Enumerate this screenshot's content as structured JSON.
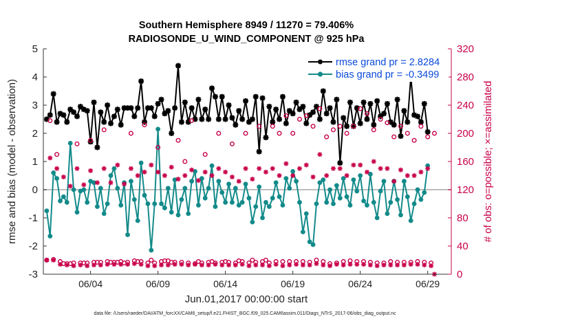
{
  "chart_data": {
    "type": "line",
    "title": "Southern Hemisphere 8949 / 11270 = 79.406%",
    "subtitle": "RADIOSONDE_U_WIND_COMPONENT @ 925 hPa",
    "xlabel": "Jun.01,2017 00:00:00 start",
    "ylabel": "rmse and bias (model - observation)",
    "ylabel_right": "# of obs: o=possible; ×=assimilated",
    "footnote": "data file: /Users/raeder/DAI/ATM_forcXX/CAM6_setup/f.e21.FHIST_BGC.f09_025.CAM6assim.011/Diags_NTrS_2017-06/obs_diag_output.nc",
    "xlim": [
      0.5,
      30.75
    ],
    "ylim": [
      -3,
      5
    ],
    "ylim_right": [
      0,
      320
    ],
    "x_ticks": [
      4,
      9,
      14,
      19,
      24,
      29
    ],
    "x_tick_labels": [
      "06/04",
      "06/09",
      "06/14",
      "06/19",
      "06/24",
      "06/29"
    ],
    "y_ticks": [
      -3,
      -2,
      -1,
      0,
      1,
      2,
      3,
      4,
      5
    ],
    "y_ticks_right": [
      0,
      40,
      80,
      120,
      160,
      200,
      240,
      280,
      320
    ],
    "zero_line": 0,
    "grid": false,
    "legend_position": "top-right",
    "x_start": 0.75,
    "x_step": 0.25,
    "series": [
      {
        "name": "rmse grand pr = 2.8284",
        "axis": "left",
        "color": "#000000",
        "marker": "star",
        "values": [
          2.5,
          2.65,
          3.4,
          2.4,
          2.7,
          2.65,
          2.4,
          2.85,
          2.75,
          2.6,
          2.95,
          2.85,
          2.8,
          1.7,
          3.1,
          1.5,
          2.75,
          2.4,
          3.0,
          2.35,
          2.6,
          2.85,
          2.3,
          2.9,
          2.9,
          2.9,
          2.6,
          2.9,
          3.85,
          2.4,
          2.9,
          2.9,
          2.6,
          3.05,
          3.2,
          2.7,
          2.8,
          2.0,
          2.9,
          4.4,
          2.4,
          3.1,
          2.4,
          2.9,
          2.5,
          3.2,
          2.5,
          2.85,
          2.5,
          3.6,
          3.3,
          2.5,
          3.3,
          2.5,
          3.0,
          2.55,
          2.3,
          2.8,
          2.5,
          3.15,
          2.4,
          2.5,
          3.3,
          1.35,
          3.25,
          1.85,
          2.95,
          2.4,
          2.85,
          2.5,
          3.3,
          2.35,
          2.8,
          2.7,
          3.1,
          2.85,
          2.95,
          2.35,
          2.65,
          2.75,
          2.95,
          2.5,
          3.5,
          2.7,
          2.9,
          2.4,
          3.2,
          0.95,
          2.55,
          2.25,
          3.1,
          2.25,
          2.9,
          2.35,
          3.1,
          2.5,
          3.05,
          2.3,
          3.15,
          2.6,
          2.7,
          3.05,
          2.4,
          2.3,
          3.2,
          1.9,
          2.8,
          2.4,
          4.0,
          2.65,
          2.6,
          2.4,
          3.05,
          2.05
        ]
      },
      {
        "name": "bias grand pr = -0.3499",
        "axis": "left",
        "color": "#138a8a",
        "marker": "dot",
        "values": [
          -0.75,
          -1.65,
          0.6,
          0.4,
          -0.4,
          -0.25,
          -0.45,
          1.65,
          0.0,
          -0.8,
          -0.05,
          0.0,
          -0.45,
          0.3,
          0.25,
          -0.6,
          0.05,
          -0.85,
          -0.5,
          0.5,
          0.75,
          0.05,
          -0.55,
          0.25,
          -1.6,
          0.3,
          -0.35,
          -1.1,
          0.95,
          -0.2,
          -0.5,
          -2.15,
          -0.5,
          2.15,
          -0.5,
          -0.65,
          0.05,
          -0.8,
          0.35,
          -0.9,
          -0.35,
          0.05,
          -0.85,
          0.3,
          0.65,
          -0.55,
          0.4,
          -0.3,
          0.05,
          0.85,
          -0.6,
          0.3,
          -0.1,
          -0.45,
          0.2,
          -0.45,
          0.05,
          -0.55,
          -0.45,
          0.2,
          -0.3,
          -1.15,
          -0.6,
          0.1,
          -1.0,
          -0.45,
          -0.6,
          -0.3,
          0.25,
          -0.25,
          -0.55,
          0.4,
          0.05,
          0.65,
          0.3,
          -0.45,
          -1.5,
          -0.85,
          -1.85,
          -1.95,
          -0.5,
          0.25,
          0.35,
          -0.45,
          0.0,
          -0.5,
          0.15,
          -0.3,
          0.4,
          -0.25,
          -0.55,
          0.35,
          -0.05,
          0.5,
          -0.4,
          -0.55,
          0.55,
          -0.45,
          -1.0,
          -0.05,
          0.3,
          -0.85,
          -0.45,
          0.3,
          -0.35,
          -0.9,
          0.3,
          -0.25,
          -1.1,
          -0.5,
          0.0,
          -0.35,
          -0.1,
          0.85
        ]
      },
      {
        "name": "possible",
        "axis": "right",
        "color": "#c8004a",
        "marker": "circle",
        "values": [
          20,
          218,
          21,
          170,
          18,
          15,
          15,
          15,
          16,
          185,
          16,
          16,
          16,
          190,
          17,
          17,
          17,
          205,
          18,
          17,
          17,
          17,
          18,
          16,
          17,
          200,
          19,
          18,
          18,
          212,
          16,
          20,
          16,
          180,
          18,
          19,
          19,
          17,
          17,
          190,
          17,
          160,
          16,
          218,
          15,
          18,
          16,
          170,
          17,
          18,
          16,
          200,
          17,
          18,
          17,
          185,
          16,
          19,
          18,
          200,
          16,
          20,
          17,
          210,
          18,
          20,
          16,
          210,
          18,
          200,
          18,
          225,
          18,
          200,
          18,
          220,
          18,
          225,
          17,
          210,
          20,
          235,
          18,
          195,
          15,
          205,
          16,
          210,
          18,
          200,
          19,
          210,
          18,
          235,
          18,
          228,
          17,
          205,
          16,
          220,
          16,
          215,
          18,
          195,
          17,
          210,
          17,
          200,
          17,
          190,
          18,
          210,
          17,
          195,
          16,
          200
        ]
      },
      {
        "name": "assimilated",
        "axis": "right",
        "color": "#c8004a",
        "marker": "asterisk",
        "values": [
          20,
          165,
          20,
          150,
          14,
          138,
          13,
          125,
          12,
          150,
          13,
          127,
          12,
          147,
          13,
          130,
          13,
          150,
          14,
          130,
          14,
          155,
          14,
          128,
          14,
          150,
          15,
          140,
          14,
          145,
          12,
          155,
          12,
          145,
          13,
          140,
          13,
          152,
          14,
          135,
          14,
          140,
          13,
          148,
          14,
          133,
          13,
          145,
          13,
          140,
          14,
          150,
          13,
          145,
          13,
          138,
          13,
          132,
          14,
          150,
          12,
          135,
          13,
          150,
          13,
          145,
          12,
          150,
          14,
          140,
          12,
          157,
          13,
          140,
          14,
          150,
          13,
          155,
          13,
          138,
          15,
          170,
          13,
          140,
          12,
          150,
          14,
          150,
          13,
          140,
          14,
          155,
          14,
          155,
          14,
          145,
          13,
          160,
          12,
          150,
          13,
          150,
          13,
          132,
          13,
          148,
          13,
          140,
          14,
          140,
          14,
          145,
          13,
          150,
          12,
          0
        ]
      }
    ]
  }
}
